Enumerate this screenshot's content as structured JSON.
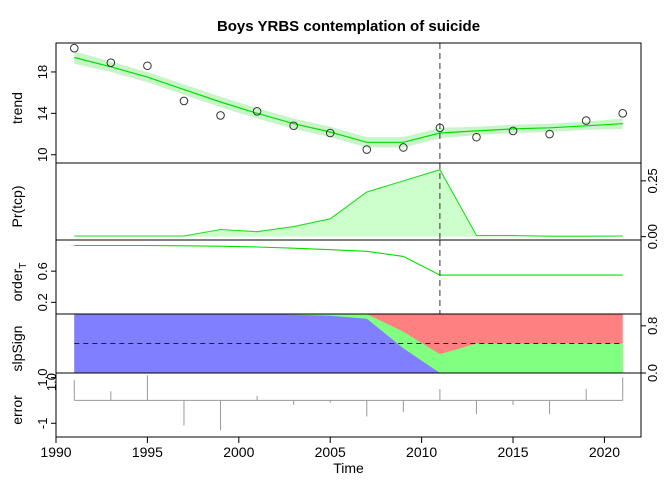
{
  "chart_data": {
    "type": "line",
    "title": "Boys YRBS contemplation of suicide",
    "xlabel": "Time",
    "xlim": [
      1990.0,
      2022.0
    ],
    "x_ticks": [
      1990,
      1995,
      2000,
      2005,
      2010,
      2015,
      2020
    ],
    "x_tick_labels": [
      "1990",
      "1995",
      "2000",
      "2005",
      "2010",
      "2015",
      "2020"
    ],
    "changepoint": 2011,
    "colors": {
      "trend_line": "#00e000",
      "trend_band": "#c8f5c8",
      "prob_fill": "#ccffcc",
      "prob_line": "#22dd22",
      "slp_negative": "#7f7fff",
      "slp_zero": "#80ff80",
      "slp_positive": "#ff8080",
      "error_line": "#999999",
      "vline": "#333333"
    },
    "panels": [
      {
        "id": "trend",
        "ylabel": "trend",
        "ylim": [
          9.2,
          20.8
        ],
        "ticks": [
          10,
          14,
          18
        ],
        "tick_labels": [
          "10",
          "14",
          "18"
        ],
        "axis_side": "left",
        "observed": {
          "x": [
            1991,
            1993,
            1995,
            1997,
            1999,
            2001,
            2003,
            2005,
            2007,
            2009,
            2011,
            2013,
            2015,
            2017,
            2019,
            2021
          ],
          "y": [
            20.3,
            18.9,
            18.6,
            15.2,
            13.8,
            14.2,
            12.8,
            12.1,
            10.5,
            10.7,
            12.6,
            11.7,
            12.3,
            12.0,
            13.3,
            14.0
          ]
        },
        "fitted": {
          "x": [
            1991,
            1993,
            1995,
            1997,
            1999,
            2001,
            2003,
            2005,
            2007,
            2009,
            2011,
            2013,
            2015,
            2017,
            2019,
            2021
          ],
          "y": [
            19.4,
            18.5,
            17.5,
            16.3,
            15.1,
            14.0,
            13.0,
            12.2,
            11.2,
            11.2,
            12.1,
            12.3,
            12.5,
            12.6,
            12.8,
            13.0
          ],
          "band": [
            0.6,
            0.5,
            0.5,
            0.5,
            0.5,
            0.5,
            0.5,
            0.5,
            0.5,
            0.5,
            0.5,
            0.4,
            0.4,
            0.4,
            0.4,
            0.5
          ]
        }
      },
      {
        "id": "prob",
        "ylabel": "Pr(tcp)",
        "ylim": [
          -0.015,
          0.33
        ],
        "ticks": [
          0.0,
          0.25
        ],
        "tick_labels": [
          "0.00",
          "0.25"
        ],
        "axis_side": "right",
        "series": {
          "x": [
            1991,
            1993,
            1995,
            1997,
            1999,
            2001,
            2003,
            2005,
            2007,
            2009,
            2011,
            2013,
            2015,
            2017,
            2019,
            2021
          ],
          "y": [
            0.003,
            0.003,
            0.003,
            0.003,
            0.032,
            0.022,
            0.045,
            0.08,
            0.2,
            0.25,
            0.3,
            0.005,
            0.005,
            0.002,
            0.002,
            0.003
          ]
        }
      },
      {
        "id": "order",
        "ylabel": "order",
        "ylabel_sub": "T",
        "ylim": [
          0.05,
          1.0
        ],
        "ticks": [
          0.2,
          0.6
        ],
        "tick_labels": [
          "0.2",
          "0.6"
        ],
        "axis_side": "left",
        "series": {
          "x": [
            1991,
            1993,
            1995,
            1997,
            1999,
            2001,
            2003,
            2005,
            2007,
            2009,
            2011,
            2013,
            2015,
            2017,
            2019,
            2021
          ],
          "y": [
            0.93,
            0.93,
            0.93,
            0.925,
            0.92,
            0.91,
            0.895,
            0.875,
            0.855,
            0.79,
            0.55,
            0.55,
            0.55,
            0.55,
            0.55,
            0.55
          ]
        }
      },
      {
        "id": "slpSign",
        "ylabel": "slpSign",
        "ylim": [
          0.0,
          1.0
        ],
        "ticks": [
          0.0,
          0.8
        ],
        "tick_labels": [
          "0.0",
          "0.8"
        ],
        "axis_side": "right",
        "left_extra_label": "1.0",
        "reference_line": 0.5,
        "x": [
          1991,
          1993,
          1995,
          1997,
          1999,
          2001,
          2003,
          2005,
          2007,
          2009,
          2011,
          2013,
          2015,
          2017,
          2019,
          2021
        ],
        "negative": [
          1.0,
          1.0,
          1.0,
          1.0,
          1.0,
          1.0,
          0.99,
          0.97,
          0.92,
          0.42,
          0.0,
          0.0,
          0.0,
          0.0,
          0.0,
          0.0
        ],
        "zero": [
          0.0,
          0.0,
          0.0,
          0.0,
          0.0,
          0.0,
          0.01,
          0.03,
          0.08,
          0.28,
          0.32,
          0.5,
          0.5,
          0.5,
          0.5,
          0.5
        ]
      },
      {
        "id": "error",
        "ylabel": "error",
        "ylim": [
          -1.6,
          1.2
        ],
        "ticks": [
          -1.0,
          1.0
        ],
        "tick_labels": [
          "-1",
          "1.0"
        ],
        "axis_side": "left",
        "baseline": 0.0,
        "x": [
          1991,
          1993,
          1995,
          1997,
          1999,
          2001,
          2003,
          2005,
          2007,
          2009,
          2011,
          2013,
          2015,
          2017,
          2019,
          2021
        ],
        "values": [
          0.9,
          0.4,
          1.1,
          -1.1,
          -1.3,
          0.2,
          -0.2,
          -0.1,
          -0.7,
          -0.5,
          0.5,
          -0.6,
          -0.2,
          -0.6,
          0.5,
          1.0
        ]
      }
    ]
  }
}
